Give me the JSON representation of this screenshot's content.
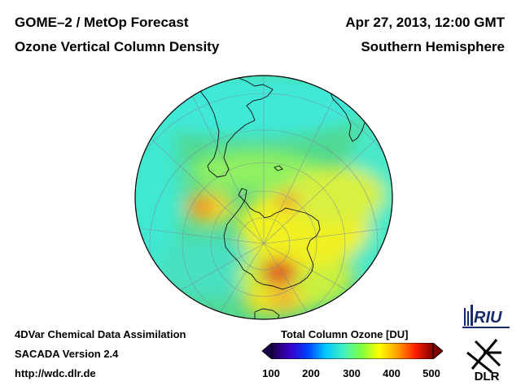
{
  "header": {
    "title_left_1": "GOME–2 / MetOp Forecast",
    "title_left_2": "Ozone Vertical Column Density",
    "title_right_1": "Apr 27, 2013, 12:00 GMT",
    "title_right_2": "Southern Hemisphere"
  },
  "footer": {
    "line1": "4DVar Chemical Data Assimilation",
    "line2": "SACADA Version 2.4",
    "line3": "http://wdc.dlr.de"
  },
  "colorbar": {
    "title": "Total Column Ozone [DU]",
    "ticks": [
      "100",
      "200",
      "300",
      "400",
      "500"
    ],
    "range": [
      100,
      500
    ],
    "colors": [
      "#1a004a",
      "#3b00c8",
      "#0040ff",
      "#00c8ff",
      "#40f0c0",
      "#80ff40",
      "#ffff00",
      "#ffa000",
      "#ff2000",
      "#800000"
    ]
  },
  "logos": {
    "riu": "RIU",
    "dlr": "DLR"
  },
  "map": {
    "projection": "polar stereographic, south pole",
    "background_color": "#50d890"
  }
}
